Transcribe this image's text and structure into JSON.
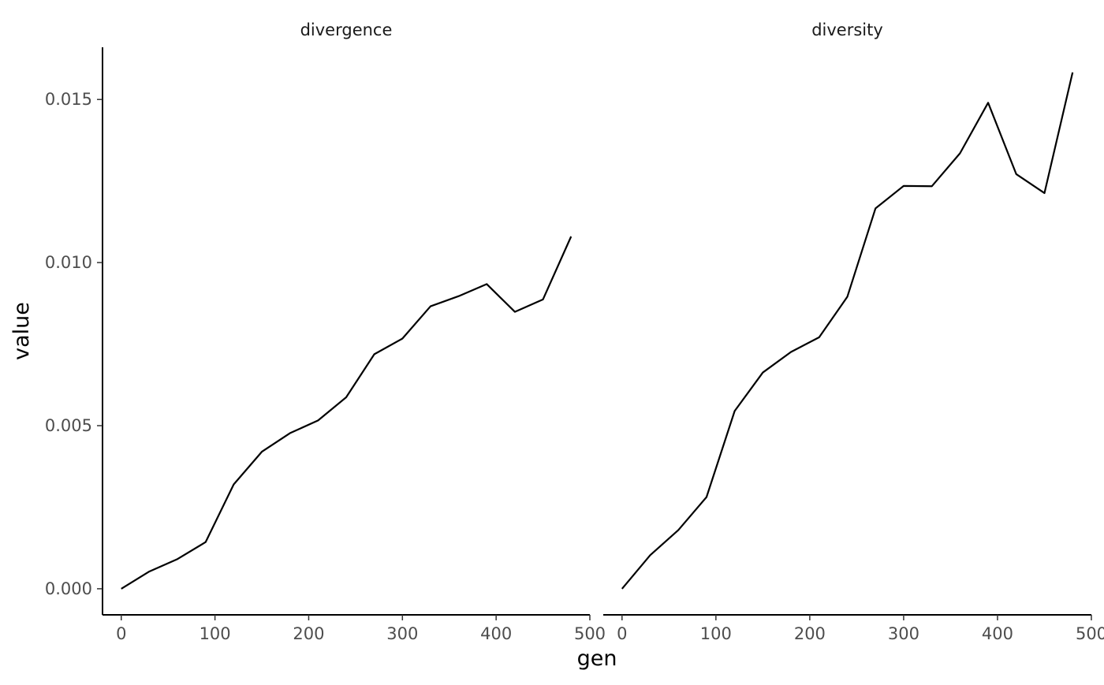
{
  "chart_data": {
    "type": "line",
    "facet_by": "variable",
    "xlabel": "gen",
    "ylabel": "value",
    "xlim": [
      -20,
      500
    ],
    "ylim": [
      -0.0008,
      0.0166
    ],
    "x_ticks": [
      0,
      100,
      200,
      300,
      400,
      500
    ],
    "y_ticks": [
      0.0,
      0.005,
      0.01,
      0.015
    ],
    "x_tick_labels": [
      "0",
      "100",
      "200",
      "300",
      "400",
      "500"
    ],
    "y_tick_labels": [
      "0.000",
      "0.005",
      "0.010",
      "0.015"
    ],
    "grid": false,
    "legend": "none",
    "line_color": "#000000",
    "panels": [
      {
        "title": "divergence",
        "x": [
          0,
          30,
          60,
          90,
          120,
          150,
          180,
          210,
          240,
          270,
          300,
          330,
          360,
          390,
          420,
          450,
          480
        ],
        "y": [
          0.0,
          0.00053,
          0.00091,
          0.00143,
          0.0032,
          0.0042,
          0.00477,
          0.00516,
          0.00587,
          0.00719,
          0.00767,
          0.00866,
          0.00897,
          0.00934,
          0.00849,
          0.00887,
          0.0108
        ]
      },
      {
        "title": "diversity",
        "x": [
          0,
          30,
          60,
          90,
          120,
          150,
          180,
          210,
          240,
          270,
          300,
          330,
          360,
          390,
          420,
          450,
          480
        ],
        "y": [
          0.0,
          0.00103,
          0.0018,
          0.00281,
          0.00545,
          0.00663,
          0.00726,
          0.00771,
          0.00895,
          0.01166,
          0.01235,
          0.01234,
          0.01335,
          0.0149,
          0.01271,
          0.01213,
          0.01583
        ]
      }
    ]
  }
}
